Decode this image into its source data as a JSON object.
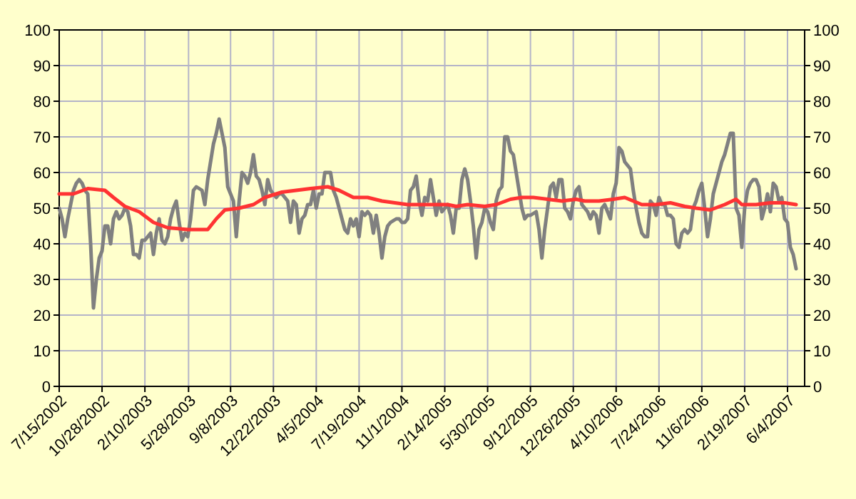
{
  "chart_data": {
    "type": "line",
    "xlim": [
      "2002-07-15",
      "2007-07-16"
    ],
    "xticks": [
      {
        "value": "2002-07-15",
        "label": "7/15/2002"
      },
      {
        "value": "2002-10-28",
        "label": "10/28/2002"
      },
      {
        "value": "2003-02-10",
        "label": "2/10/2003"
      },
      {
        "value": "2003-05-28",
        "label": "5/28/2003"
      },
      {
        "value": "2003-09-08",
        "label": "9/8/2003"
      },
      {
        "value": "2003-12-22",
        "label": "12/22/2003"
      },
      {
        "value": "2004-04-05",
        "label": "4/5/2004"
      },
      {
        "value": "2004-07-19",
        "label": "7/19/2004"
      },
      {
        "value": "2004-11-01",
        "label": "11/1/2004"
      },
      {
        "value": "2005-02-14",
        "label": "2/14/2005"
      },
      {
        "value": "2005-05-30",
        "label": "5/30/2005"
      },
      {
        "value": "2005-09-12",
        "label": "9/12/2005"
      },
      {
        "value": "2005-12-26",
        "label": "12/26/2005"
      },
      {
        "value": "2006-04-10",
        "label": "4/10/2006"
      },
      {
        "value": "2006-07-24",
        "label": "7/24/2006"
      },
      {
        "value": "2006-11-06",
        "label": "11/6/2006"
      },
      {
        "value": "2007-02-19",
        "label": "2/19/2007"
      },
      {
        "value": "2007-06-04",
        "label": "6/4/2007"
      }
    ],
    "ylim": [
      0,
      100
    ],
    "yticks": [
      0,
      10,
      20,
      30,
      40,
      50,
      60,
      70,
      80,
      90,
      100
    ],
    "y2lim": [
      0,
      100
    ],
    "y2ticks": [
      0,
      10,
      20,
      30,
      40,
      50,
      60,
      70,
      80,
      90,
      100
    ],
    "grid": true,
    "marker": "none",
    "line_style": "solid",
    "series": [
      {
        "color": "#808080",
        "x": [
          "2002-07-15",
          "2002-07-22",
          "2002-07-29",
          "2002-08-05",
          "2002-08-12",
          "2002-08-19",
          "2002-08-26",
          "2002-09-02",
          "2002-09-09",
          "2002-09-16",
          "2002-09-23",
          "2002-09-30",
          "2002-10-07",
          "2002-10-14",
          "2002-10-21",
          "2002-10-28",
          "2002-11-04",
          "2002-11-11",
          "2002-11-18",
          "2002-11-25",
          "2002-12-02",
          "2002-12-09",
          "2002-12-16",
          "2002-12-23",
          "2002-12-30",
          "2003-01-06",
          "2003-01-13",
          "2003-01-20",
          "2003-01-27",
          "2003-02-03",
          "2003-02-10",
          "2003-02-17",
          "2003-02-24",
          "2003-03-03",
          "2003-03-10",
          "2003-03-17",
          "2003-03-24",
          "2003-03-31",
          "2003-04-07",
          "2003-04-14",
          "2003-04-21",
          "2003-04-28",
          "2003-05-05",
          "2003-05-12",
          "2003-05-19",
          "2003-05-26",
          "2003-06-02",
          "2003-06-09",
          "2003-06-16",
          "2003-06-30",
          "2003-07-07",
          "2003-07-14",
          "2003-07-21",
          "2003-07-28",
          "2003-08-04",
          "2003-08-11",
          "2003-08-18",
          "2003-08-25",
          "2003-09-01",
          "2003-09-08",
          "2003-09-15",
          "2003-09-22",
          "2003-09-29",
          "2003-10-06",
          "2003-10-13",
          "2003-10-20",
          "2003-10-27",
          "2003-11-03",
          "2003-11-10",
          "2003-11-17",
          "2003-11-24",
          "2003-12-01",
          "2003-12-08",
          "2003-12-15",
          "2003-12-29",
          "2004-01-05",
          "2004-01-12",
          "2004-01-26",
          "2004-02-02",
          "2004-02-09",
          "2004-02-16",
          "2004-02-23",
          "2004-03-01",
          "2004-03-08",
          "2004-03-15",
          "2004-03-22",
          "2004-03-29",
          "2004-04-05",
          "2004-04-12",
          "2004-04-19",
          "2004-04-26",
          "2004-05-03",
          "2004-05-10",
          "2004-05-17",
          "2004-05-24",
          "2004-05-31",
          "2004-06-07",
          "2004-06-14",
          "2004-06-21",
          "2004-06-28",
          "2004-07-05",
          "2004-07-12",
          "2004-07-19",
          "2004-07-26",
          "2004-08-02",
          "2004-08-09",
          "2004-08-16",
          "2004-08-23",
          "2004-08-30",
          "2004-09-06",
          "2004-09-13",
          "2004-09-20",
          "2004-09-27",
          "2004-10-04",
          "2004-10-18",
          "2004-10-25",
          "2004-11-01",
          "2004-11-08",
          "2004-11-15",
          "2004-11-22",
          "2004-11-29",
          "2004-12-06",
          "2004-12-13",
          "2004-12-20",
          "2004-12-27",
          "2005-01-03",
          "2005-01-10",
          "2005-01-17",
          "2005-01-24",
          "2005-01-31",
          "2005-02-07",
          "2005-02-21",
          "2005-02-28",
          "2005-03-07",
          "2005-03-14",
          "2005-03-21",
          "2005-03-28",
          "2005-04-04",
          "2005-04-11",
          "2005-04-18",
          "2005-04-25",
          "2005-05-02",
          "2005-05-09",
          "2005-05-16",
          "2005-05-23",
          "2005-05-30",
          "2005-06-06",
          "2005-06-13",
          "2005-06-20",
          "2005-06-27",
          "2005-07-04",
          "2005-07-11",
          "2005-07-18",
          "2005-07-25",
          "2005-08-01",
          "2005-08-08",
          "2005-08-15",
          "2005-08-22",
          "2005-08-29",
          "2005-09-05",
          "2005-09-12",
          "2005-09-26",
          "2005-10-03",
          "2005-10-10",
          "2005-10-17",
          "2005-10-24",
          "2005-10-31",
          "2005-11-07",
          "2005-11-14",
          "2005-11-21",
          "2005-11-28",
          "2005-12-05",
          "2005-12-12",
          "2005-12-19",
          "2005-12-26",
          "2006-01-02",
          "2006-01-09",
          "2006-01-16",
          "2006-01-23",
          "2006-01-30",
          "2006-02-06",
          "2006-02-13",
          "2006-02-20",
          "2006-02-27",
          "2006-03-06",
          "2006-03-13",
          "2006-03-20",
          "2006-03-27",
          "2006-04-03",
          "2006-04-10",
          "2006-04-17",
          "2006-04-24",
          "2006-05-01",
          "2006-05-08",
          "2006-05-15",
          "2006-05-22",
          "2006-05-29",
          "2006-06-05",
          "2006-06-12",
          "2006-06-19",
          "2006-06-26",
          "2006-07-03",
          "2006-07-10",
          "2006-07-17",
          "2006-07-24",
          "2006-07-31",
          "2006-08-07",
          "2006-08-14",
          "2006-08-21",
          "2006-08-28",
          "2006-09-04",
          "2006-09-11",
          "2006-09-18",
          "2006-09-25",
          "2006-10-02",
          "2006-10-09",
          "2006-10-16",
          "2006-10-23",
          "2006-10-30",
          "2006-11-06",
          "2006-11-13",
          "2006-11-20",
          "2006-11-27",
          "2006-12-04",
          "2006-12-11",
          "2006-12-18",
          "2006-12-25",
          "2007-01-01",
          "2007-01-08",
          "2007-01-15",
          "2007-01-22",
          "2007-01-29",
          "2007-02-05",
          "2007-02-12",
          "2007-02-19",
          "2007-02-26",
          "2007-03-05",
          "2007-03-12",
          "2007-03-19",
          "2007-03-26",
          "2007-04-02",
          "2007-04-09",
          "2007-04-16",
          "2007-04-23",
          "2007-04-30",
          "2007-05-07",
          "2007-05-14",
          "2007-05-21",
          "2007-05-28",
          "2007-06-04",
          "2007-06-11",
          "2007-06-18",
          "2007-06-25"
        ],
        "values": [
          50,
          47,
          42,
          47,
          51,
          55,
          57,
          58,
          57,
          55,
          54,
          40,
          22,
          30,
          36,
          38,
          45,
          45,
          40,
          47,
          49,
          47,
          48,
          50,
          49,
          45,
          37,
          37,
          36,
          41,
          41,
          42,
          43,
          37,
          43,
          47,
          41,
          40,
          42,
          47,
          50,
          52,
          46,
          41,
          43,
          42,
          47,
          55,
          56,
          55,
          51,
          58,
          63,
          68,
          71,
          75,
          71,
          67,
          56,
          54,
          52,
          42,
          52,
          60,
          59,
          57,
          60,
          65,
          59,
          58,
          55,
          51,
          58,
          55,
          53,
          54,
          54,
          52,
          46,
          52,
          51,
          43,
          47,
          48,
          51,
          51,
          55,
          50,
          54,
          54,
          60,
          60,
          60,
          55,
          53,
          50,
          47,
          44,
          43,
          47,
          45,
          47,
          42,
          49,
          48,
          49,
          48,
          43,
          48,
          43,
          36,
          42,
          45,
          46,
          47,
          47,
          46,
          46,
          47,
          55,
          56,
          59,
          52,
          48,
          53,
          52,
          58,
          53,
          48,
          52,
          49,
          51,
          48,
          43,
          50,
          50,
          58,
          61,
          58,
          52,
          45,
          36,
          44,
          46,
          50,
          49,
          46,
          44,
          52,
          55,
          56,
          70,
          70,
          66,
          65,
          60,
          55,
          50,
          47,
          48,
          48,
          49,
          44,
          36,
          44,
          50,
          56,
          57,
          53,
          58,
          58,
          50,
          49,
          47,
          52,
          55,
          56,
          51,
          50,
          49,
          47,
          49,
          48,
          43,
          50,
          51,
          49,
          47,
          54,
          57,
          67,
          66,
          63,
          62,
          61,
          55,
          50,
          46,
          43,
          42,
          42,
          52,
          51,
          48,
          53,
          51,
          51,
          48,
          48,
          47,
          40,
          39,
          43,
          44,
          43,
          44,
          50,
          52,
          55,
          57,
          50,
          42,
          47,
          54,
          57,
          60,
          63,
          65,
          68,
          71,
          71,
          50,
          48,
          39,
          50,
          55,
          57,
          58,
          58,
          56,
          47,
          50,
          54,
          49,
          57,
          56,
          52,
          53,
          47,
          46,
          39,
          37,
          33
        ]
      },
      {
        "color": "#ff3333",
        "x": [
          "2002-07-15",
          "2002-08-19",
          "2002-09-23",
          "2002-11-04",
          "2002-11-25",
          "2002-12-23",
          "2003-01-27",
          "2003-03-03",
          "2003-04-07",
          "2003-05-26",
          "2003-07-14",
          "2003-08-04",
          "2003-08-25",
          "2003-09-29",
          "2003-11-03",
          "2003-12-01",
          "2004-01-12",
          "2004-02-16",
          "2004-03-22",
          "2004-05-03",
          "2004-05-31",
          "2004-07-05",
          "2004-08-09",
          "2004-09-13",
          "2004-11-15",
          "2005-01-03",
          "2005-02-21",
          "2005-03-14",
          "2005-04-11",
          "2005-05-23",
          "2005-06-20",
          "2005-07-25",
          "2005-08-22",
          "2005-09-19",
          "2005-10-24",
          "2005-11-28",
          "2006-01-02",
          "2006-01-23",
          "2006-02-27",
          "2006-04-03",
          "2006-05-01",
          "2006-05-22",
          "2006-06-12",
          "2006-07-17",
          "2006-08-21",
          "2006-09-25",
          "2006-10-23",
          "2006-11-27",
          "2007-01-01",
          "2007-01-29",
          "2007-02-12",
          "2007-03-19",
          "2007-04-23",
          "2007-05-28",
          "2007-06-25"
        ],
        "values": [
          54,
          54,
          55.5,
          55,
          53,
          50.5,
          49,
          46,
          44.5,
          44,
          44,
          47,
          49.5,
          50,
          51,
          53,
          54.5,
          55,
          55.5,
          56,
          55,
          53,
          53,
          52,
          51,
          51,
          51,
          50.5,
          51,
          50.5,
          51,
          52.5,
          53,
          53,
          52.5,
          52,
          52.5,
          52,
          52,
          52.5,
          53,
          52,
          51,
          51,
          51.5,
          50.5,
          50,
          49.5,
          51,
          52.5,
          51,
          51,
          51.5,
          51.5,
          51
        ]
      }
    ]
  }
}
